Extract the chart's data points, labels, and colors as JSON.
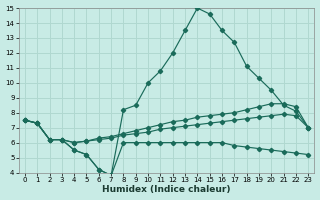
{
  "xlabel": "Humidex (Indice chaleur)",
  "xlim": [
    -0.5,
    23.5
  ],
  "ylim": [
    4,
    15
  ],
  "xticks": [
    0,
    1,
    2,
    3,
    4,
    5,
    6,
    7,
    8,
    9,
    10,
    11,
    12,
    13,
    14,
    15,
    16,
    17,
    18,
    19,
    20,
    21,
    22,
    23
  ],
  "yticks": [
    4,
    5,
    6,
    7,
    8,
    9,
    10,
    11,
    12,
    13,
    14,
    15
  ],
  "bg_color": "#c8ebe5",
  "grid_color": "#b0d8d0",
  "line_color": "#1a6b5a",
  "series1_x": [
    0,
    1,
    2,
    3,
    4,
    5,
    6,
    7,
    8,
    9,
    10,
    11,
    12,
    13,
    14,
    15,
    16,
    17,
    18,
    19,
    20,
    21,
    22,
    23
  ],
  "series1_y": [
    7.5,
    7.3,
    6.2,
    6.2,
    5.5,
    5.2,
    4.2,
    3.8,
    8.2,
    8.5,
    10.0,
    10.8,
    12.0,
    13.5,
    15.0,
    14.6,
    13.5,
    12.7,
    11.1,
    10.3,
    9.5,
    8.5,
    8.1,
    7.0
  ],
  "series2_x": [
    0,
    1,
    2,
    3,
    4,
    5,
    6,
    7,
    8,
    9,
    10,
    11,
    12,
    13,
    14,
    15,
    16,
    17,
    18,
    19,
    20,
    21,
    22,
    23
  ],
  "series2_y": [
    7.5,
    7.3,
    6.2,
    6.2,
    5.5,
    5.2,
    4.2,
    3.8,
    6.0,
    6.0,
    6.0,
    6.0,
    6.0,
    6.0,
    6.0,
    6.0,
    6.0,
    5.8,
    5.7,
    5.6,
    5.5,
    5.4,
    5.3,
    5.2
  ],
  "series3_x": [
    0,
    1,
    2,
    3,
    4,
    5,
    6,
    7,
    8,
    9,
    10,
    11,
    12,
    13,
    14,
    15,
    16,
    17,
    18,
    19,
    20,
    21,
    22,
    23
  ],
  "series3_y": [
    7.5,
    7.3,
    6.2,
    6.2,
    6.0,
    6.1,
    6.3,
    6.4,
    6.6,
    6.8,
    7.0,
    7.2,
    7.4,
    7.5,
    7.7,
    7.8,
    7.9,
    8.0,
    8.2,
    8.4,
    8.6,
    8.6,
    8.4,
    7.0
  ],
  "series4_x": [
    0,
    1,
    2,
    3,
    4,
    5,
    6,
    7,
    8,
    9,
    10,
    11,
    12,
    13,
    14,
    15,
    16,
    17,
    18,
    19,
    20,
    21,
    22,
    23
  ],
  "series4_y": [
    7.5,
    7.3,
    6.2,
    6.2,
    6.0,
    6.1,
    6.2,
    6.3,
    6.5,
    6.6,
    6.7,
    6.9,
    7.0,
    7.1,
    7.2,
    7.3,
    7.4,
    7.5,
    7.6,
    7.7,
    7.8,
    7.9,
    7.8,
    7.0
  ]
}
